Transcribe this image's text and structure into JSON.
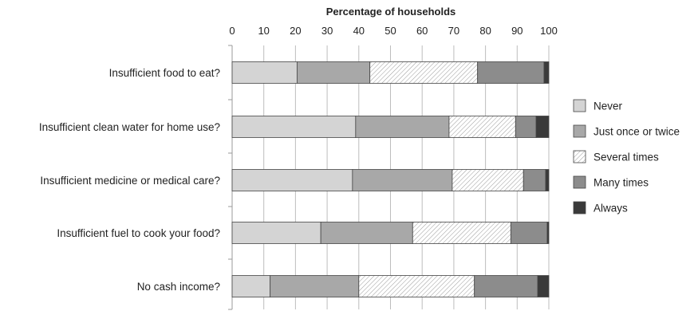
{
  "chart_data": {
    "type": "bar",
    "orientation": "horizontal",
    "stacked": true,
    "title": "",
    "xlabel": "Percentage of households",
    "ylabel": "",
    "xlim": [
      0,
      100
    ],
    "xticks": [
      "0",
      "10",
      "20",
      "30",
      "40",
      "50",
      "60",
      "70",
      "80",
      "90",
      "100"
    ],
    "x_axis_position": "top",
    "grid": "vertical",
    "legend_position": "right",
    "categories": [
      "Insufficient food to eat?",
      "Insufficient clean water for home use?",
      "Insufficient medicine or medical care?",
      "Insufficient fuel to cook your food?",
      "No cash income?"
    ],
    "series": [
      {
        "name": "Never",
        "values": [
          20.5,
          39,
          38,
          28,
          12
        ],
        "color": "#d4d4d4",
        "pattern": "solid"
      },
      {
        "name": "Just once or twice",
        "values": [
          23,
          29.5,
          31.5,
          29,
          28
        ],
        "color": "#a8a8a8",
        "pattern": "solid"
      },
      {
        "name": "Several times",
        "values": [
          34,
          21,
          22.5,
          31,
          36.5
        ],
        "color": "#ffffff",
        "pattern": "hatch"
      },
      {
        "name": "Many times",
        "values": [
          21,
          6.5,
          7,
          11.5,
          20
        ],
        "color": "#8c8c8c",
        "pattern": "solid"
      },
      {
        "name": "Always",
        "values": [
          1.5,
          4,
          1,
          0.5,
          3.5
        ],
        "color": "#3a3a3a",
        "pattern": "solid"
      }
    ]
  }
}
